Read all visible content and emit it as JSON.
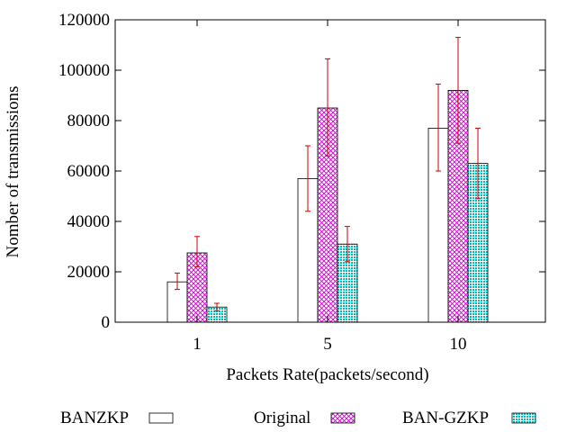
{
  "chart_data": {
    "type": "bar",
    "title": "",
    "xlabel": "Packets Rate(packets/second)",
    "ylabel": "Nomber of transmissions",
    "categories": [
      "1",
      "5",
      "10"
    ],
    "ylim": [
      0,
      120000
    ],
    "yticks": [
      0,
      20000,
      40000,
      60000,
      80000,
      100000,
      120000
    ],
    "ytick_labels": [
      "0",
      "20000",
      "40000",
      "60000",
      "80000",
      "100000",
      "120000"
    ],
    "grid": false,
    "legend_position": "bottom",
    "series": [
      {
        "name": "BANZKP",
        "values": [
          16000,
          57000,
          77000
        ],
        "error_low": [
          13000,
          44000,
          60000
        ],
        "error_high": [
          19500,
          70000,
          94500
        ],
        "fill": "#ffffff",
        "pattern": "none"
      },
      {
        "name": "Original",
        "values": [
          27500,
          85000,
          92000
        ],
        "error_low": [
          22000,
          66000,
          71000
        ],
        "error_high": [
          34000,
          104500,
          113000
        ],
        "fill": "#cc00cc",
        "pattern": "crosshatch"
      },
      {
        "name": "BAN-GZKP",
        "values": [
          6000,
          31000,
          63000
        ],
        "error_low": [
          4500,
          24000,
          49000
        ],
        "error_high": [
          7500,
          38000,
          77000
        ],
        "fill": "#00bbbb",
        "pattern": "dots"
      }
    ],
    "colors": {
      "error_bar": "#cc0000",
      "axis": "#000000"
    }
  }
}
